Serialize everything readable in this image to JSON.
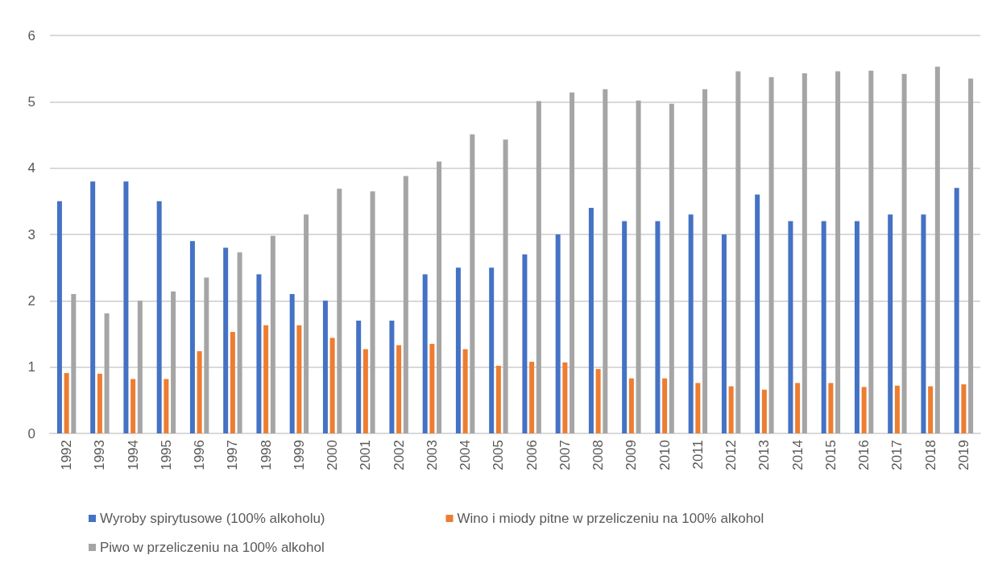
{
  "chart_data": {
    "type": "bar",
    "categories": [
      "1992",
      "1993",
      "1994",
      "1995",
      "1996",
      "1997",
      "1998",
      "1999",
      "2000",
      "2001",
      "2002",
      "2003",
      "2004",
      "2005",
      "2006",
      "2007",
      "2008",
      "2009",
      "2010",
      "2011",
      "2012",
      "2013",
      "2014",
      "2015",
      "2016",
      "2017",
      "2018",
      "2019"
    ],
    "series": [
      {
        "name": "Wyroby spirytusowe (100% alkoholu)",
        "color": "#4472c4",
        "values": [
          3.5,
          3.8,
          3.8,
          3.5,
          2.9,
          2.8,
          2.4,
          2.1,
          2.0,
          1.7,
          1.7,
          2.4,
          2.5,
          2.5,
          2.7,
          3.0,
          3.4,
          3.2,
          3.2,
          3.3,
          3.0,
          3.6,
          3.2,
          3.2,
          3.2,
          3.3,
          3.3,
          3.7
        ]
      },
      {
        "name": "Wino i miody pitne w przeliczeniu na 100% alkohol",
        "color": "#ed7d31",
        "values": [
          0.91,
          0.9,
          0.82,
          0.82,
          1.24,
          1.53,
          1.63,
          1.63,
          1.44,
          1.27,
          1.33,
          1.35,
          1.27,
          1.02,
          1.08,
          1.07,
          0.97,
          0.83,
          0.83,
          0.76,
          0.71,
          0.66,
          0.76,
          0.76,
          0.7,
          0.72,
          0.71,
          0.74
        ]
      },
      {
        "name": "Piwo w przeliczeniu na 100% alkohol",
        "color": "#a5a5a5",
        "values": [
          2.1,
          1.81,
          2.0,
          2.14,
          2.35,
          2.73,
          2.98,
          3.3,
          3.69,
          3.65,
          3.88,
          4.1,
          4.51,
          4.43,
          5.01,
          5.14,
          5.19,
          5.02,
          4.97,
          5.19,
          5.46,
          5.37,
          5.43,
          5.46,
          5.47,
          5.42,
          5.53,
          5.35
        ]
      }
    ],
    "ylim": [
      0,
      6
    ],
    "yticks": [
      0,
      1,
      2,
      3,
      4,
      5,
      6
    ],
    "grid": "y",
    "legend": "bottom"
  }
}
